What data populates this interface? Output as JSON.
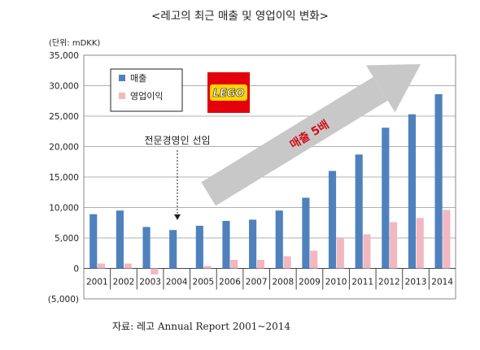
{
  "chart_data": {
    "type": "bar",
    "title": "<레고의 최근 매출 및 영업이익 변화>",
    "unit_label": "(단위: mDKK)",
    "categories": [
      "2001",
      "2002",
      "2003",
      "2004",
      "2005",
      "2006",
      "2007",
      "2008",
      "2009",
      "2010",
      "2011",
      "2012",
      "2013",
      "2014"
    ],
    "series": [
      {
        "name": "매출",
        "color": "#4F81BD",
        "values": [
          8900,
          9500,
          6800,
          6300,
          7000,
          7800,
          8000,
          9500,
          11600,
          16000,
          18700,
          23100,
          25300,
          28600
        ]
      },
      {
        "name": "영업이익",
        "color": "#F2B8C0",
        "values": [
          800,
          800,
          -1000,
          0,
          400,
          1400,
          1400,
          2000,
          2900,
          5000,
          5600,
          7600,
          8300,
          9600
        ]
      }
    ],
    "ylim": [
      -5000,
      35000
    ],
    "y_ticks": [
      -5000,
      0,
      5000,
      10000,
      15000,
      20000,
      25000,
      30000,
      35000
    ],
    "y_tick_labels": [
      "(5,000)",
      "0",
      "5,000",
      "10,000",
      "15,000",
      "20,000",
      "25,000",
      "30,000",
      "35,000"
    ],
    "grid": true,
    "legend": "top-left",
    "annotations": {
      "ceo": "전문경영인 선임",
      "arrow_label": "매출 5배",
      "logo": "LEGO"
    }
  },
  "source": "자료:  레고  Annual Report 2001~2014"
}
